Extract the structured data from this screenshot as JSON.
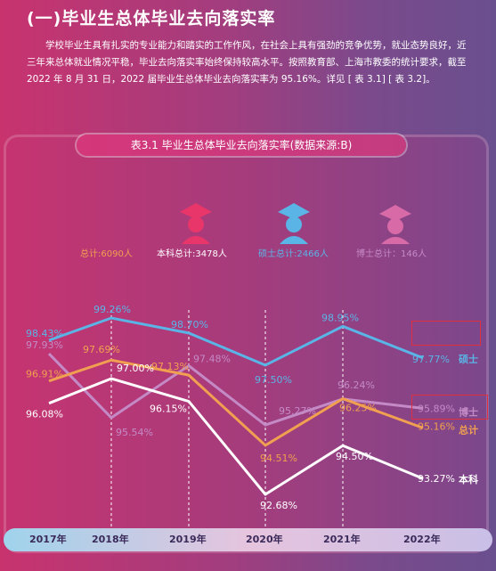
{
  "heading": "(一)毕业生总体毕业去向落实率",
  "paragraph": "学校毕业生具有扎实的专业能力和踏实的工作作风，在社会上具有强劲的竞争优势，就业态势良好，近三年来总体就业情况平稳，毕业去向落实率始终保持较高水平。按照教育部、上海市教委的统计要求，截至 2022 年 8 月 31 日，2022 届毕业生总体毕业去向落实率为 95.16%。详见 [ 表 3.1] [ 表 3.2]。",
  "icons": [
    "graduate-icon-bachelor",
    "graduate-icon-master",
    "graduate-icon-doctor"
  ],
  "legend": [
    {
      "label": "总计:6090人",
      "color": "#f0a050"
    },
    {
      "label": "本科总计:3478人",
      "color": "#ffffff"
    },
    {
      "label": "硕士总计:2466人",
      "color": "#5ab4e6"
    },
    {
      "label": "博士总计：146人",
      "color": "#c48ac6"
    }
  ],
  "chart_data": {
    "type": "line",
    "title": "表3.1  毕业生总体毕业去向落实率(数据来源:B)",
    "categories": [
      "2017年",
      "2018年",
      "2019年",
      "2020年",
      "2021年",
      "2022年"
    ],
    "ylim": [
      92,
      100
    ],
    "series": [
      {
        "name": "硕士",
        "color": "#5ab4e6",
        "values": [
          98.43,
          99.26,
          98.7,
          97.5,
          98.95,
          97.77
        ],
        "labels": [
          "98.43%",
          "99.26%",
          "98.70%",
          "97.50%",
          "98.95%",
          "97.77%"
        ]
      },
      {
        "name": "博士",
        "color": "#c48ac6",
        "values": [
          97.93,
          95.54,
          97.48,
          95.27,
          96.24,
          95.89
        ],
        "labels": [
          "97.93%",
          "95.54%",
          "97.48%",
          "95.27%",
          "96.24%",
          "95.89%"
        ]
      },
      {
        "name": "总计",
        "color": "#f0a050",
        "values": [
          96.91,
          97.69,
          97.13,
          94.51,
          96.25,
          95.16
        ],
        "labels": [
          "96.91%",
          "97.69%",
          "97.13%",
          "94.51%",
          "96.25%",
          "95.16%"
        ]
      },
      {
        "name": "本科",
        "color": "#ffffff",
        "values": [
          96.08,
          97.0,
          96.15,
          92.68,
          94.5,
          93.27
        ],
        "labels": [
          "96.08%",
          "97.00%",
          "96.15%",
          "92.68%",
          "94.50%",
          "93.27%"
        ]
      }
    ]
  }
}
